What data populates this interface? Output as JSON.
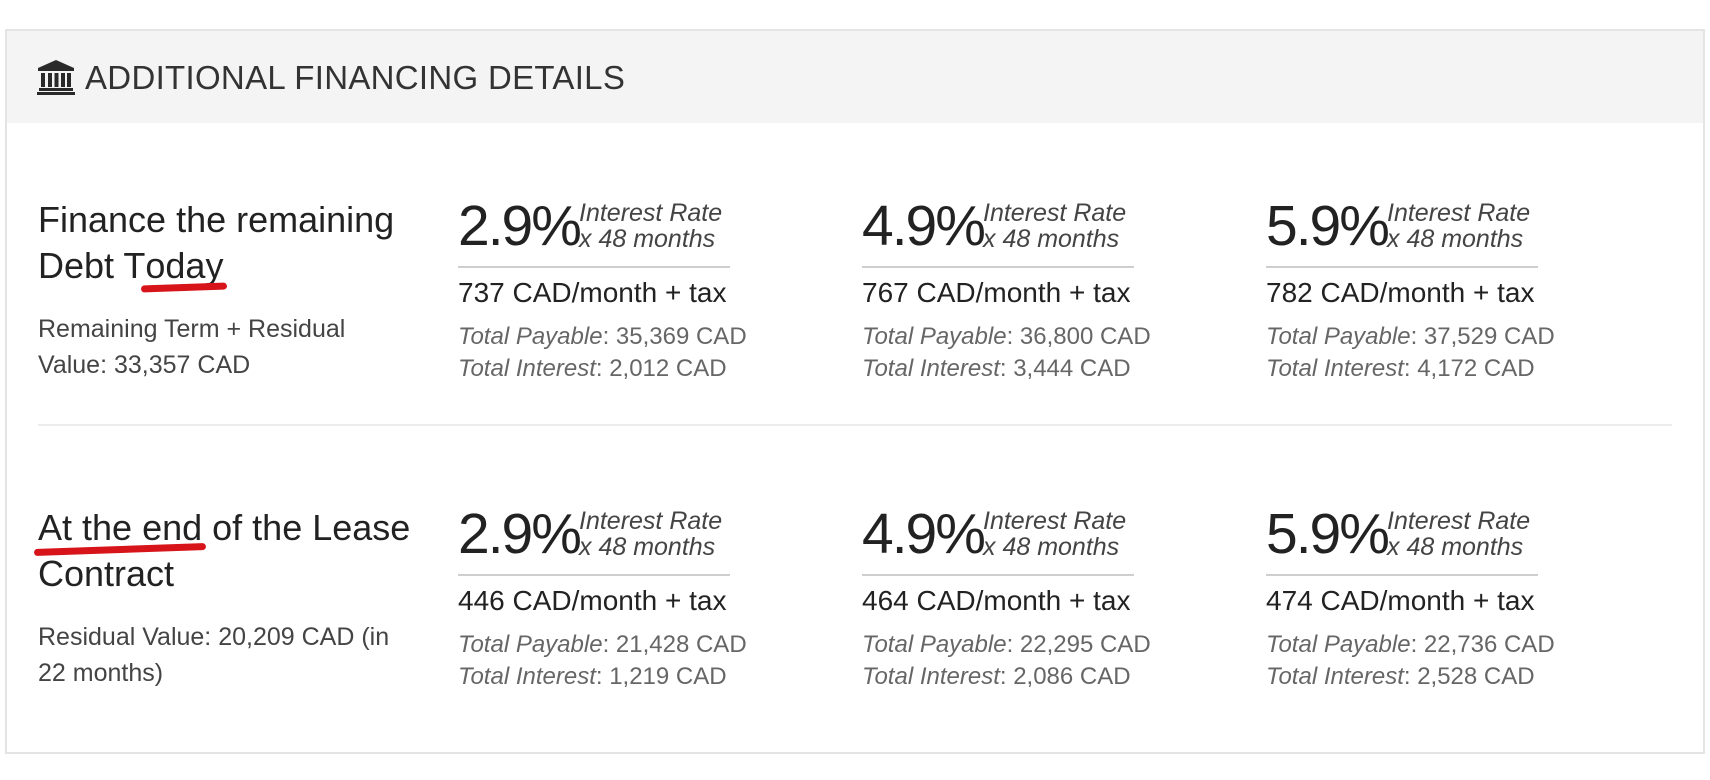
{
  "header": {
    "title": "ADDITIONAL FINANCING DETAILS",
    "icon": "bank-icon"
  },
  "rows": [
    {
      "title_pre": "Finance the remaining Debt T",
      "title_hl": "oday",
      "title_post": "",
      "subtitle": "Remaining Term + Residual Value: 33,357 CAD",
      "options": [
        {
          "rate": "2.9%",
          "rate_label": "Interest Rate",
          "term": "x 48 months",
          "monthly": "737 CAD/month + tax",
          "payable_label": "Total Payable",
          "payable": ": 35,369 CAD",
          "interest_label": "Total Interest",
          "interest": ": 2,012 CAD"
        },
        {
          "rate": "4.9%",
          "rate_label": "Interest Rate",
          "term": "x 48 months",
          "monthly": "767 CAD/month + tax",
          "payable_label": "Total Payable",
          "payable": ": 36,800 CAD",
          "interest_label": "Total Interest",
          "interest": ": 3,444 CAD"
        },
        {
          "rate": "5.9%",
          "rate_label": "Interest Rate",
          "term": "x 48 months",
          "monthly": "782 CAD/month + tax",
          "payable_label": "Total Payable",
          "payable": ": 37,529 CAD",
          "interest_label": "Total Interest",
          "interest": ": 4,172 CAD"
        }
      ]
    },
    {
      "title_pre": "",
      "title_hl": "At the end",
      "title_post": " of the Lease Contract",
      "subtitle": "Residual Value: 20,209 CAD (in 22 months)",
      "options": [
        {
          "rate": "2.9%",
          "rate_label": "Interest Rate",
          "term": "x 48 months",
          "monthly": "446 CAD/month + tax",
          "payable_label": "Total Payable",
          "payable": ": 21,428 CAD",
          "interest_label": "Total Interest",
          "interest": ": 1,219 CAD"
        },
        {
          "rate": "4.9%",
          "rate_label": "Interest Rate",
          "term": "x 48 months",
          "monthly": "464 CAD/month + tax",
          "payable_label": "Total Payable",
          "payable": ": 22,295 CAD",
          "interest_label": "Total Interest",
          "interest": ": 2,086 CAD"
        },
        {
          "rate": "5.9%",
          "rate_label": "Interest Rate",
          "term": "x 48 months",
          "monthly": "474 CAD/month + tax",
          "payable_label": "Total Payable",
          "payable": ": 22,736 CAD",
          "interest_label": "Total Interest",
          "interest": ": 2,528 CAD"
        }
      ]
    }
  ],
  "colors": {
    "highlight": "#d7141a",
    "header_bg": "#f4f4f4"
  }
}
